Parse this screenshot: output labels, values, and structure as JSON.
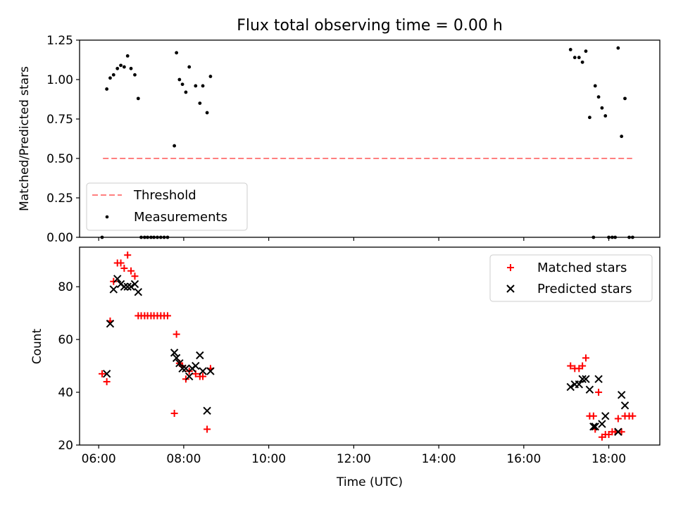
{
  "chart_data": [
    {
      "type": "scatter",
      "title": "Flux total observing time = 0.00 h",
      "xlabel": "",
      "ylabel": "Matched/Predicted stars",
      "xlim": [
        5.55,
        19.2
      ],
      "ylim": [
        0,
        1.25
      ],
      "yticks": [
        0,
        0.25,
        0.5,
        0.75,
        1.0,
        1.25
      ],
      "ytick_labels": [
        "0.00",
        "0.25",
        "0.50",
        "0.75",
        "1.00",
        "1.25"
      ],
      "xticks": [
        6,
        8,
        10,
        12,
        14,
        16,
        18
      ],
      "grid": false,
      "legend_position": "lower-left",
      "series": [
        {
          "name": "Threshold",
          "kind": "dashed-line",
          "color": "#ff7f7f",
          "x": [
            6.1,
            18.55
          ],
          "y": [
            0.5,
            0.5
          ]
        },
        {
          "name": "Measurements",
          "kind": "dot",
          "color": "#000000",
          "x": [
            6.08,
            6.19,
            6.27,
            6.35,
            6.44,
            6.52,
            6.6,
            6.68,
            6.76,
            6.85,
            6.93,
            7.0,
            7.08,
            7.15,
            7.23,
            7.3,
            7.38,
            7.46,
            7.54,
            7.62,
            7.78,
            7.83,
            7.9,
            7.97,
            8.05,
            8.13,
            8.28,
            8.38,
            8.45,
            8.55,
            8.63,
            17.1,
            17.2,
            17.3,
            17.38,
            17.46,
            17.55,
            17.64,
            17.68,
            17.76,
            17.84,
            17.92,
            18.0,
            18.08,
            18.15,
            18.22,
            18.3,
            18.38,
            18.48,
            18.56
          ],
          "y": [
            0.0,
            0.94,
            1.01,
            1.03,
            1.07,
            1.09,
            1.08,
            1.15,
            1.07,
            1.03,
            0.88,
            0.0,
            0.0,
            0.0,
            0.0,
            0.0,
            0.0,
            0.0,
            0.0,
            0.0,
            0.58,
            1.17,
            1.0,
            0.97,
            0.92,
            1.08,
            0.96,
            0.85,
            0.96,
            0.79,
            1.02,
            1.19,
            1.14,
            1.14,
            1.11,
            1.18,
            0.76,
            0.0,
            0.96,
            0.89,
            0.82,
            0.77,
            0.0,
            0.0,
            0.0,
            1.2,
            0.64,
            0.88,
            0.0,
            0.0
          ]
        }
      ]
    },
    {
      "type": "scatter",
      "title": "",
      "xlabel": "Time (UTC)",
      "ylabel": "Count",
      "xlim": [
        5.55,
        19.2
      ],
      "ylim": [
        20,
        95
      ],
      "yticks": [
        20,
        40,
        60,
        80
      ],
      "ytick_labels": [
        "20",
        "40",
        "60",
        "80"
      ],
      "xticks": [
        6,
        8,
        10,
        12,
        14,
        16,
        18
      ],
      "xtick_labels": [
        "06:00",
        "08:00",
        "10:00",
        "12:00",
        "14:00",
        "16:00",
        "18:00"
      ],
      "grid": false,
      "legend_position": "upper-right",
      "series": [
        {
          "name": "Matched stars",
          "kind": "plus",
          "color": "#ff0000",
          "x": [
            6.08,
            6.19,
            6.27,
            6.35,
            6.44,
            6.52,
            6.6,
            6.68,
            6.76,
            6.85,
            6.93,
            7.0,
            7.08,
            7.15,
            7.23,
            7.3,
            7.38,
            7.46,
            7.54,
            7.62,
            7.78,
            7.83,
            7.9,
            7.97,
            8.05,
            8.13,
            8.28,
            8.38,
            8.45,
            8.55,
            8.63,
            17.1,
            17.2,
            17.3,
            17.38,
            17.46,
            17.55,
            17.64,
            17.68,
            17.76,
            17.84,
            17.92,
            18.0,
            18.08,
            18.15,
            18.22,
            18.3,
            18.38,
            18.48,
            18.56
          ],
          "y": [
            47,
            44,
            67,
            82,
            89,
            89,
            87,
            92,
            86,
            84,
            69,
            69,
            69,
            69,
            69,
            69,
            69,
            69,
            69,
            69,
            32,
            62,
            51,
            50,
            45,
            48,
            47,
            46,
            46,
            26,
            49,
            50,
            49,
            49,
            50,
            53,
            31,
            31,
            26,
            40,
            23,
            24,
            24,
            25,
            25,
            30,
            25,
            31,
            31,
            31
          ]
        },
        {
          "name": "Predicted stars",
          "kind": "x",
          "color": "#000000",
          "x": [
            6.19,
            6.27,
            6.35,
            6.44,
            6.52,
            6.6,
            6.68,
            6.76,
            6.85,
            6.93,
            7.78,
            7.83,
            7.9,
            7.97,
            8.05,
            8.13,
            8.2,
            8.28,
            8.38,
            8.45,
            8.55,
            8.63,
            17.1,
            17.2,
            17.3,
            17.38,
            17.46,
            17.55,
            17.64,
            17.68,
            17.76,
            17.84,
            17.92,
            18.22,
            18.3,
            18.38
          ],
          "y": [
            47,
            66,
            79,
            83,
            81,
            80,
            80,
            80,
            81,
            78,
            55,
            53,
            51,
            49,
            49,
            46,
            49,
            50,
            54,
            48,
            33,
            48,
            42,
            43,
            43,
            45,
            45,
            41,
            27,
            27,
            45,
            28,
            31,
            25,
            39,
            35
          ]
        }
      ]
    }
  ]
}
